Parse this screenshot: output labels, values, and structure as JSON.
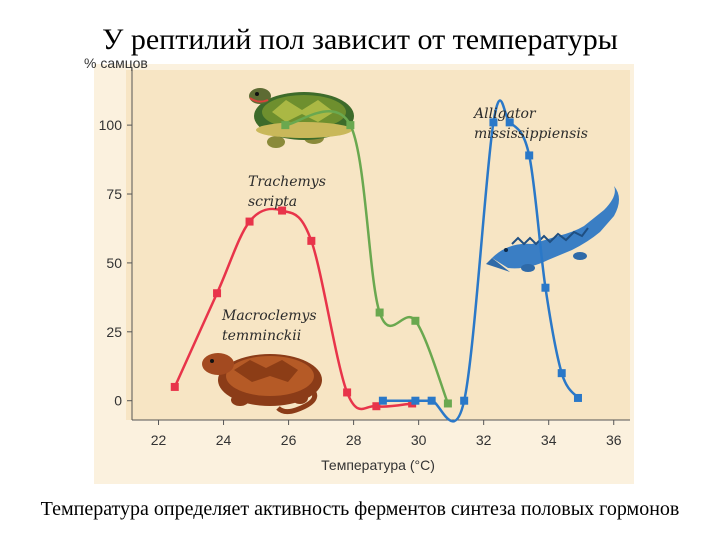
{
  "slide": {
    "title": "У рептилий пол зависит от температуры",
    "footer": "Температура определяет активность ферментов синтеза половых гормонов"
  },
  "colors": {
    "plot_background": "#f7e5c4",
    "outer_background": "#fbf1de",
    "red_series": "#e8344a",
    "green_series": "#6aa84f",
    "blue_series": "#2a78c8"
  },
  "icons": [
    "turtle-trachemys-illustration",
    "turtle-macroclemys-illustration",
    "alligator-illustration"
  ],
  "chart_data": {
    "type": "line",
    "title": "",
    "xlabel": "Температура (°C)",
    "ylabel": "% самцов",
    "xlim": [
      21,
      36.5
    ],
    "ylim": [
      -7,
      120
    ],
    "xticks": [
      22,
      24,
      26,
      28,
      30,
      32,
      34,
      36
    ],
    "yticks": [
      0,
      25,
      50,
      75,
      100
    ],
    "grid": false,
    "series": [
      {
        "name": "Macroclemys temminckii",
        "color": "#e8344a",
        "x": [
          22.5,
          23.8,
          24.8,
          25.8,
          26.7,
          27.8,
          28.7,
          29.8
        ],
        "y": [
          5,
          39,
          65,
          69,
          58,
          3,
          -2,
          -1
        ]
      },
      {
        "name": "Trachemys scripta",
        "color": "#6aa84f",
        "x": [
          25.9,
          27.9,
          28.8,
          29.9,
          30.9
        ],
        "y": [
          100,
          100,
          32,
          29,
          -1
        ]
      },
      {
        "name": "Alligator mississippiensis",
        "color": "#2a78c8",
        "x": [
          28.9,
          29.9,
          30.4,
          31.4,
          32.3,
          32.8,
          33.4,
          33.9,
          34.4,
          34.9
        ],
        "y": [
          0,
          0,
          0,
          0,
          101,
          101,
          89,
          41,
          10,
          1
        ]
      }
    ]
  }
}
